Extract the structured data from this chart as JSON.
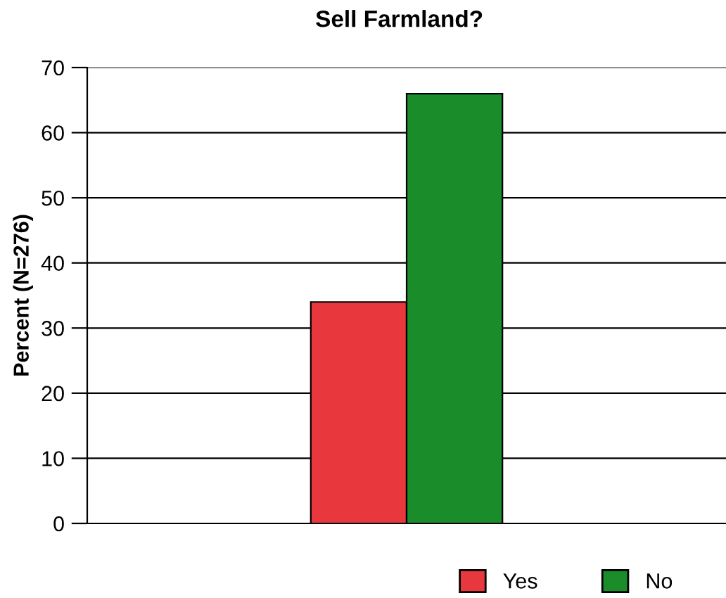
{
  "chart_data": {
    "type": "bar",
    "title": "Sell Farmland?",
    "ylabel": "Percent (N=276)",
    "categories": [
      null
    ],
    "series": [
      {
        "name": "Yes",
        "color": "#e8383d",
        "values": [
          34
        ]
      },
      {
        "name": "No",
        "color": "#1a8c2a",
        "values": [
          66
        ]
      }
    ],
    "ylim": [
      0,
      70
    ],
    "yticks": [
      0,
      10,
      20,
      30,
      40,
      50,
      60,
      70
    ],
    "grid": "y",
    "legend": "bottom"
  }
}
